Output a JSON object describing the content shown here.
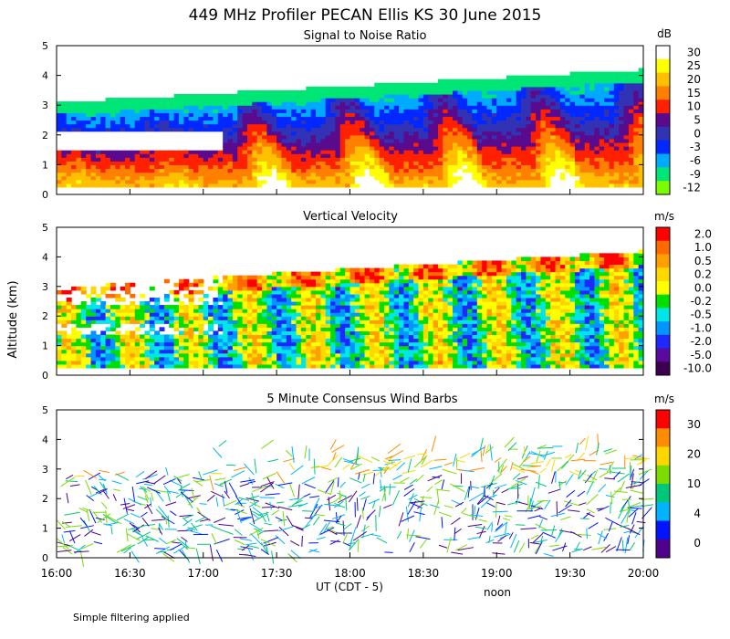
{
  "figure": {
    "title": "449 MHz Profiler PECAN Ellis KS 30 June 2015",
    "y_axis_label": "Altitude (km)",
    "x_axis_label": "UT  (CDT - 5)",
    "noon_label": "noon",
    "footnote": "Simple filtering applied"
  },
  "chart_data": [
    {
      "id": "snr",
      "type": "heatmap",
      "title": "Signal to Noise Ratio",
      "unit": "dB",
      "ylim": [
        0,
        5
      ],
      "yticks": [
        "0",
        "1",
        "2",
        "3",
        "4",
        "5"
      ],
      "colorbar_labels": [
        "30",
        "25",
        "20",
        "15",
        "10",
        "5",
        "0",
        "-3",
        "-6",
        "-9",
        "-12"
      ],
      "colors": [
        "#ffffff",
        "#ffff00",
        "#ffc000",
        "#ff8000",
        "#ff2000",
        "#5a0a8c",
        "#3232b4",
        "#0028ff",
        "#00aaff",
        "#00e676",
        "#7cfc00"
      ]
    },
    {
      "id": "vv",
      "type": "heatmap",
      "title": "Vertical Velocity",
      "unit": "m/s",
      "ylim": [
        0,
        5
      ],
      "yticks": [
        "0",
        "1",
        "2",
        "3",
        "4",
        "5"
      ],
      "colorbar_labels": [
        "2.0",
        "1.0",
        "0.5",
        "0.2",
        "0.0",
        "-0.2",
        "-0.5",
        "-1.0",
        "-2.0",
        "-5.0",
        "-10.0"
      ],
      "colors": [
        "#ff0000",
        "#ff6a00",
        "#ffa000",
        "#ffd800",
        "#ffff00",
        "#00e000",
        "#00e6e6",
        "#0096ff",
        "#1e28ff",
        "#5a0a9c",
        "#3c0050"
      ]
    },
    {
      "id": "wind",
      "type": "scatter",
      "title": "5 Minute Consensus Wind Barbs",
      "unit": "m/s",
      "ylim": [
        0,
        5
      ],
      "yticks": [
        "0",
        "1",
        "2",
        "3",
        "4",
        "5"
      ],
      "colorbar_labels": [
        "30",
        "20",
        "10",
        "4",
        "0"
      ],
      "colors": [
        "#ff0000",
        "#ff8c00",
        "#ffd700",
        "#7cdc00",
        "#00c87a",
        "#00b4ff",
        "#0014ff",
        "#50008c"
      ]
    }
  ],
  "time_axis": {
    "ticks": [
      "16:00",
      "16:30",
      "17:00",
      "17:30",
      "18:00",
      "18:30",
      "19:00",
      "19:30",
      "20:00"
    ]
  }
}
